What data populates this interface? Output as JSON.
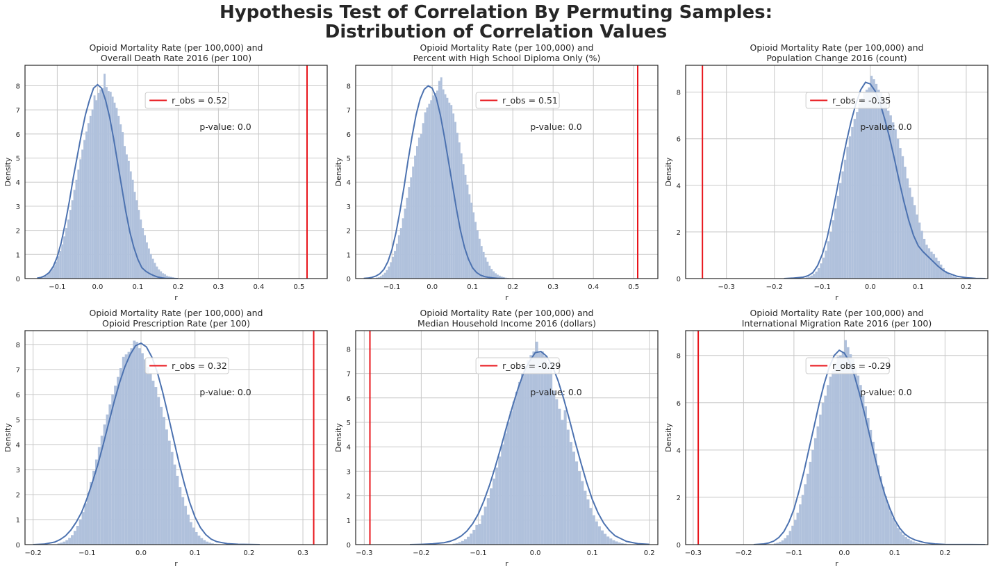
{
  "figure": {
    "title_line1": "Hypothesis Test of Correlation By Permuting Samples:",
    "title_line2": "Distribution of Correlation Values",
    "colors": {
      "hist": "#b0c1dc",
      "kde": "#4c72b0",
      "obs_line": "#e8151b",
      "grid": "#c8c8c8",
      "axis": "#262626"
    }
  },
  "chart_data": [
    {
      "type": "histogram",
      "title_line1": "Opioid Mortality Rate (per 100,000) and",
      "title_line2": "Overall Death Rate 2016 (per 100)",
      "xlabel": "r",
      "ylabel": "Density",
      "xlim": [
        -0.18,
        0.57
      ],
      "ylim": [
        0,
        8.85
      ],
      "xticks": [
        -0.1,
        0.0,
        0.1,
        0.2,
        0.3,
        0.4,
        0.5
      ],
      "xtick_labels": [
        "−0.1",
        "0.0",
        "0.1",
        "0.2",
        "0.3",
        "0.4",
        "0.5"
      ],
      "yticks": [
        0,
        1,
        2,
        3,
        4,
        5,
        6,
        7,
        8
      ],
      "r_obs": 0.52,
      "legend": "r_obs = 0.52",
      "pvalue_text": "p-value: 0.0",
      "null_mean": 0.0,
      "null_sd": 0.049,
      "hist": {
        "start": -0.14,
        "width": 0.005,
        "values": [
          0.05,
          0.08,
          0.12,
          0.2,
          0.28,
          0.4,
          0.55,
          0.7,
          0.92,
          1.15,
          1.42,
          1.75,
          2.1,
          2.45,
          2.85,
          3.25,
          3.68,
          4.1,
          4.52,
          4.95,
          5.35,
          5.75,
          6.1,
          6.45,
          6.75,
          7.02,
          7.6,
          7.4,
          7.7,
          7.85,
          7.9,
          8.5,
          7.95,
          7.78,
          7.75,
          7.55,
          7.3,
          7.08,
          6.75,
          6.4,
          6.08,
          5.5,
          5.15,
          4.88,
          4.45,
          4.1,
          3.6,
          3.25,
          2.85,
          2.45,
          2.1,
          1.8,
          1.5,
          1.25,
          1.02,
          0.82,
          0.65,
          0.5,
          0.38,
          0.3,
          0.22,
          0.18,
          0.12,
          0.09,
          0.07,
          0.05,
          0.03,
          0.02,
          0.01,
          0.01
        ]
      },
      "kde": {
        "x": [
          -0.15,
          -0.14,
          -0.13,
          -0.12,
          -0.11,
          -0.1,
          -0.09,
          -0.08,
          -0.07,
          -0.06,
          -0.05,
          -0.04,
          -0.03,
          -0.02,
          -0.01,
          0.0,
          0.01,
          0.02,
          0.03,
          0.04,
          0.05,
          0.06,
          0.07,
          0.08,
          0.09,
          0.1,
          0.11,
          0.12,
          0.13,
          0.14,
          0.15,
          0.16,
          0.17,
          0.18,
          0.19,
          0.2
        ],
        "y": [
          0.02,
          0.05,
          0.12,
          0.25,
          0.5,
          0.9,
          1.5,
          2.3,
          3.2,
          4.2,
          5.1,
          6.0,
          6.8,
          7.4,
          7.9,
          8.05,
          7.9,
          7.4,
          6.7,
          5.8,
          4.8,
          3.8,
          2.8,
          1.95,
          1.3,
          0.8,
          0.45,
          0.3,
          0.2,
          0.12,
          0.06,
          0.03,
          0.01,
          0.005,
          0.002,
          0.0
        ]
      }
    },
    {
      "type": "histogram",
      "title_line1": "Opioid Mortality Rate (per 100,000) and",
      "title_line2": "Percent with High School Diploma Only (%)",
      "xlabel": "r",
      "ylabel": "Density",
      "xlim": [
        -0.19,
        0.56
      ],
      "ylim": [
        0,
        8.85
      ],
      "xticks": [
        -0.1,
        0.0,
        0.1,
        0.2,
        0.3,
        0.4,
        0.5
      ],
      "xtick_labels": [
        "−0.1",
        "0.0",
        "0.1",
        "0.2",
        "0.3",
        "0.4",
        "0.5"
      ],
      "yticks": [
        0,
        1,
        2,
        3,
        4,
        5,
        6,
        7,
        8
      ],
      "r_obs": 0.51,
      "legend": "r_obs = 0.51",
      "pvalue_text": "p-value: 0.0",
      "null_mean": 0.0,
      "null_sd": 0.049,
      "hist": {
        "start": -0.14,
        "width": 0.005,
        "values": [
          0.04,
          0.06,
          0.1,
          0.16,
          0.24,
          0.35,
          0.5,
          0.68,
          0.9,
          1.15,
          1.45,
          1.8,
          2.1,
          2.5,
          2.9,
          3.35,
          3.8,
          4.2,
          4.65,
          5.1,
          5.5,
          5.85,
          6.0,
          6.45,
          6.9,
          7.1,
          7.25,
          7.4,
          7.6,
          7.7,
          7.8,
          8.2,
          8.35,
          7.85,
          7.65,
          7.5,
          7.3,
          7.2,
          6.85,
          6.5,
          6.05,
          5.65,
          5.2,
          4.75,
          4.3,
          3.9,
          3.5,
          3.15,
          2.75,
          2.35,
          2.0,
          1.65,
          1.35,
          1.1,
          0.88,
          0.7,
          0.53,
          0.4,
          0.3,
          0.22,
          0.16,
          0.12,
          0.08,
          0.06,
          0.04,
          0.03,
          0.02,
          0.01,
          0.01,
          0.01
        ]
      },
      "kde": {
        "x": [
          -0.17,
          -0.16,
          -0.15,
          -0.14,
          -0.13,
          -0.12,
          -0.11,
          -0.1,
          -0.09,
          -0.08,
          -0.07,
          -0.06,
          -0.05,
          -0.04,
          -0.03,
          -0.02,
          -0.01,
          0.0,
          0.01,
          0.02,
          0.03,
          0.04,
          0.05,
          0.06,
          0.07,
          0.08,
          0.09,
          0.1,
          0.11,
          0.12,
          0.13,
          0.14,
          0.15,
          0.16,
          0.17,
          0.18
        ],
        "y": [
          0.01,
          0.02,
          0.05,
          0.1,
          0.2,
          0.38,
          0.7,
          1.2,
          1.9,
          2.8,
          3.8,
          4.9,
          5.9,
          6.8,
          7.45,
          7.85,
          8.0,
          7.9,
          7.5,
          6.8,
          5.9,
          4.9,
          3.9,
          2.9,
          2.0,
          1.3,
          0.8,
          0.45,
          0.25,
          0.14,
          0.08,
          0.05,
          0.03,
          0.015,
          0.008,
          0.0
        ]
      }
    },
    {
      "type": "histogram",
      "title_line1": "Opioid Mortality Rate (per 100,000) and",
      "title_line2": "Population Change 2016 (count)",
      "xlabel": "r",
      "ylabel": "Density",
      "xlim": [
        -0.385,
        0.245
      ],
      "ylim": [
        0,
        9.15
      ],
      "xticks": [
        -0.3,
        -0.2,
        -0.1,
        0.0,
        0.1,
        0.2
      ],
      "xtick_labels": [
        "−0.3",
        "−0.2",
        "−0.1",
        "0.0",
        "0.1",
        "0.2"
      ],
      "yticks": [
        0,
        2,
        4,
        6,
        8
      ],
      "r_obs": -0.35,
      "legend": "r_obs = -0.35",
      "pvalue_text": "p-value: 0.0",
      "null_mean": 0.0,
      "null_sd": 0.047,
      "hist": {
        "start": -0.135,
        "width": 0.005,
        "values": [
          0.05,
          0.08,
          0.13,
          0.2,
          0.3,
          0.45,
          0.65,
          0.9,
          1.2,
          1.6,
          2.0,
          2.5,
          3.0,
          3.55,
          4.1,
          4.6,
          5.1,
          5.65,
          6.1,
          6.5,
          6.85,
          7.15,
          7.5,
          7.75,
          8.0,
          8.1,
          8.2,
          8.7,
          8.55,
          8.35,
          8.1,
          8.0,
          7.7,
          7.6,
          7.2,
          7.0,
          6.7,
          6.4,
          6.0,
          5.6,
          5.25,
          4.8,
          4.3,
          3.9,
          3.5,
          3.15,
          2.75,
          2.4,
          2.05,
          1.7,
          1.45,
          1.3,
          1.15,
          1.05,
          0.9,
          0.75,
          0.6,
          0.45,
          0.32,
          0.22,
          0.15,
          0.1,
          0.06,
          0.04,
          0.02,
          0.02,
          0.01,
          0.01
        ]
      },
      "kde": {
        "x": [
          -0.18,
          -0.16,
          -0.14,
          -0.13,
          -0.12,
          -0.11,
          -0.1,
          -0.09,
          -0.08,
          -0.07,
          -0.06,
          -0.05,
          -0.04,
          -0.03,
          -0.02,
          -0.01,
          0.0,
          0.01,
          0.02,
          0.03,
          0.04,
          0.05,
          0.06,
          0.07,
          0.08,
          0.09,
          0.1,
          0.11,
          0.12,
          0.13,
          0.14,
          0.15,
          0.16,
          0.18,
          0.2,
          0.22,
          0.24
        ],
        "y": [
          0.0,
          0.02,
          0.06,
          0.12,
          0.25,
          0.55,
          1.05,
          1.75,
          2.7,
          3.75,
          4.85,
          5.85,
          6.75,
          7.5,
          8.1,
          8.42,
          8.35,
          8.05,
          7.55,
          6.85,
          6.05,
          5.15,
          4.2,
          3.3,
          2.5,
          1.85,
          1.4,
          1.15,
          0.95,
          0.75,
          0.55,
          0.38,
          0.25,
          0.1,
          0.04,
          0.01,
          0.0
        ]
      }
    },
    {
      "type": "histogram",
      "title_line1": "Opioid Mortality Rate (per 100,000) and",
      "title_line2": "Opioid Prescription Rate (per 100)",
      "xlabel": "r",
      "ylabel": "Density",
      "xlim": [
        -0.215,
        0.345
      ],
      "ylim": [
        0,
        8.55
      ],
      "xticks": [
        -0.2,
        -0.1,
        0.0,
        0.1,
        0.2,
        0.3
      ],
      "xtick_labels": [
        "−0.2",
        "−0.1",
        "0.0",
        "0.1",
        "0.2",
        "0.3"
      ],
      "yticks": [
        0,
        1,
        2,
        3,
        4,
        5,
        6,
        7,
        8
      ],
      "r_obs": 0.32,
      "legend": "r_obs = 0.32",
      "pvalue_text": "p-value: 0.0",
      "null_mean": 0.0,
      "null_sd": 0.049,
      "hist": {
        "start": -0.155,
        "width": 0.005,
        "values": [
          0.05,
          0.08,
          0.12,
          0.18,
          0.27,
          0.38,
          0.55,
          0.75,
          1.0,
          1.3,
          1.65,
          2.05,
          2.5,
          2.95,
          3.4,
          3.9,
          4.35,
          4.8,
          5.2,
          5.6,
          6.0,
          6.35,
          6.7,
          7.05,
          7.5,
          7.6,
          7.7,
          7.85,
          8.15,
          8.1,
          7.85,
          7.65,
          7.4,
          7.1,
          6.85,
          6.55,
          6.3,
          5.9,
          5.5,
          5.1,
          4.6,
          4.15,
          3.7,
          3.2,
          2.75,
          2.3,
          1.9,
          1.55,
          1.2,
          0.9,
          0.68,
          0.5,
          0.36,
          0.26,
          0.18,
          0.12,
          0.08,
          0.05,
          0.03,
          0.02,
          0.01
        ]
      },
      "kde": {
        "x": [
          -0.2,
          -0.18,
          -0.16,
          -0.15,
          -0.14,
          -0.13,
          -0.12,
          -0.11,
          -0.1,
          -0.09,
          -0.08,
          -0.07,
          -0.06,
          -0.05,
          -0.04,
          -0.03,
          -0.02,
          -0.01,
          0.0,
          0.01,
          0.02,
          0.03,
          0.04,
          0.05,
          0.06,
          0.07,
          0.08,
          0.09,
          0.1,
          0.11,
          0.12,
          0.13,
          0.14,
          0.16,
          0.18,
          0.2,
          0.22
        ],
        "y": [
          0.0,
          0.02,
          0.1,
          0.2,
          0.35,
          0.58,
          0.9,
          1.3,
          1.85,
          2.5,
          3.2,
          4.0,
          4.85,
          5.7,
          6.45,
          7.1,
          7.6,
          7.95,
          8.05,
          7.9,
          7.5,
          6.9,
          6.1,
          5.2,
          4.25,
          3.3,
          2.45,
          1.7,
          1.1,
          0.68,
          0.4,
          0.22,
          0.12,
          0.04,
          0.015,
          0.005,
          0.0
        ]
      }
    },
    {
      "type": "histogram",
      "title_line1": "Opioid Mortality Rate (per 100,000) and",
      "title_line2": "Median Household Income 2016 (dollars)",
      "xlabel": "r",
      "ylabel": "Density",
      "xlim": [
        -0.315,
        0.215
      ],
      "ylim": [
        0,
        8.75
      ],
      "xticks": [
        -0.3,
        -0.2,
        -0.1,
        0.0,
        0.1,
        0.2
      ],
      "xtick_labels": [
        "−0.3",
        "−0.2",
        "−0.1",
        "0.0",
        "0.1",
        "0.2"
      ],
      "yticks": [
        0,
        1,
        2,
        3,
        4,
        5,
        6,
        7,
        8
      ],
      "r_obs": -0.29,
      "legend": "r_obs = -0.29",
      "pvalue_text": "p-value: 0.0",
      "null_mean": 0.0,
      "null_sd": 0.05,
      "hist": {
        "start": -0.145,
        "width": 0.005,
        "values": [
          0.04,
          0.06,
          0.1,
          0.15,
          0.22,
          0.32,
          0.45,
          0.6,
          0.8,
          0.85,
          1.2,
          1.55,
          1.9,
          2.3,
          2.7,
          3.15,
          3.6,
          4.1,
          4.55,
          5.0,
          5.45,
          5.85,
          6.25,
          6.65,
          7.0,
          7.3,
          7.55,
          7.75,
          7.9,
          8.3,
          7.9,
          7.9,
          7.7,
          7.45,
          7.15,
          6.3,
          5.95,
          5.55,
          5.1,
          5.5,
          4.7,
          4.2,
          3.8,
          3.4,
          3.0,
          2.6,
          2.2,
          1.85,
          1.5,
          1.2,
          0.95,
          0.75,
          0.58,
          0.44,
          0.33,
          0.25,
          0.18,
          0.13,
          0.09,
          0.06,
          0.04
        ]
      },
      "kde": {
        "x": [
          -0.22,
          -0.2,
          -0.18,
          -0.16,
          -0.15,
          -0.14,
          -0.13,
          -0.12,
          -0.11,
          -0.1,
          -0.09,
          -0.08,
          -0.07,
          -0.06,
          -0.05,
          -0.04,
          -0.03,
          -0.02,
          -0.01,
          0.0,
          0.01,
          0.02,
          0.03,
          0.04,
          0.05,
          0.06,
          0.07,
          0.08,
          0.09,
          0.1,
          0.11,
          0.12,
          0.13,
          0.14,
          0.16,
          0.18,
          0.2
        ],
        "y": [
          0.0,
          0.01,
          0.03,
          0.08,
          0.13,
          0.22,
          0.35,
          0.55,
          0.85,
          1.25,
          1.8,
          2.45,
          3.2,
          4.0,
          4.85,
          5.65,
          6.4,
          7.05,
          7.5,
          7.85,
          7.9,
          7.7,
          7.3,
          6.7,
          5.95,
          5.1,
          4.2,
          3.35,
          2.55,
          1.85,
          1.3,
          0.88,
          0.58,
          0.36,
          0.13,
          0.04,
          0.01
        ]
      }
    },
    {
      "type": "histogram",
      "title_line1": "Opioid Mortality Rate (per 100,000) and",
      "title_line2": "International Migration Rate 2016 (per 100)",
      "xlabel": "r",
      "ylabel": "Density",
      "xlim": [
        -0.315,
        0.285
      ],
      "ylim": [
        0,
        9.05
      ],
      "xticks": [
        -0.3,
        -0.2,
        -0.1,
        0.0,
        0.1,
        0.2
      ],
      "xtick_labels": [
        "−0.3",
        "−0.2",
        "−0.1",
        "0.0",
        "0.1",
        "0.2"
      ],
      "yticks": [
        0,
        2,
        4,
        6,
        8
      ],
      "r_obs": -0.29,
      "legend": "r_obs = -0.29",
      "pvalue_text": "p-value: 0.0",
      "null_mean": 0.0,
      "null_sd": 0.048,
      "hist": {
        "start": -0.14,
        "width": 0.005,
        "values": [
          0.05,
          0.08,
          0.12,
          0.18,
          0.27,
          0.4,
          0.58,
          0.8,
          1.05,
          1.35,
          1.7,
          2.1,
          2.55,
          3.0,
          3.5,
          4.0,
          4.5,
          5.0,
          5.5,
          6.0,
          6.3,
          6.75,
          7.1,
          7.35,
          7.7,
          7.95,
          8.0,
          8.15,
          8.65,
          8.35,
          8.05,
          7.85,
          7.5,
          7.15,
          6.75,
          6.3,
          5.85,
          5.35,
          4.85,
          4.35,
          3.85,
          3.35,
          2.9,
          2.45,
          2.05,
          1.7,
          1.4,
          1.12,
          0.9,
          0.7,
          0.55,
          0.42,
          0.32,
          0.24,
          0.18,
          0.13,
          0.09,
          0.06,
          0.04,
          0.03,
          0.02
        ]
      },
      "kde": {
        "x": [
          -0.18,
          -0.16,
          -0.15,
          -0.14,
          -0.13,
          -0.12,
          -0.11,
          -0.1,
          -0.09,
          -0.08,
          -0.07,
          -0.06,
          -0.05,
          -0.04,
          -0.03,
          -0.02,
          -0.01,
          0.0,
          0.01,
          0.02,
          0.03,
          0.04,
          0.05,
          0.06,
          0.07,
          0.08,
          0.09,
          0.1,
          0.11,
          0.12,
          0.13,
          0.14,
          0.16,
          0.18,
          0.2,
          0.24,
          0.28
        ],
        "y": [
          0.0,
          0.03,
          0.07,
          0.15,
          0.3,
          0.55,
          0.95,
          1.5,
          2.25,
          3.1,
          4.05,
          5.0,
          5.95,
          6.8,
          7.5,
          8.0,
          8.22,
          8.1,
          7.75,
          7.15,
          6.4,
          5.55,
          4.65,
          3.75,
          2.9,
          2.15,
          1.55,
          1.05,
          0.7,
          0.45,
          0.3,
          0.2,
          0.08,
          0.03,
          0.01,
          0.002,
          0.0
        ]
      }
    }
  ]
}
